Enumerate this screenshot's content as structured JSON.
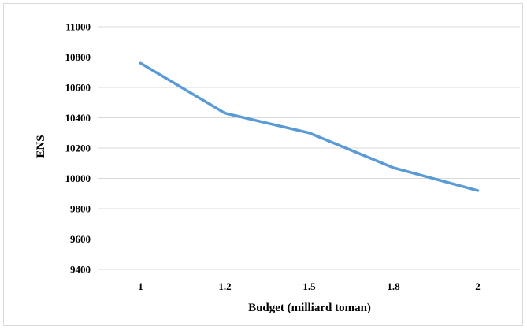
{
  "chart_data": {
    "type": "line",
    "categories": [
      "1",
      "1.2",
      "1.5",
      "1.8",
      "2"
    ],
    "series": [
      {
        "values": [
          10760,
          10430,
          10300,
          10070,
          9920
        ]
      }
    ],
    "xlabel": "Budget (milliard toman)",
    "ylabel": "ENS",
    "ylim": [
      9400,
      11000
    ],
    "yticks": [
      "9400",
      "9600",
      "9800",
      "10000",
      "10200",
      "10400",
      "10600",
      "10800",
      "11000"
    ],
    "grid": true,
    "legend": "none",
    "line_color": "#5b9bd5",
    "grid_color": "#d9d9d9"
  }
}
